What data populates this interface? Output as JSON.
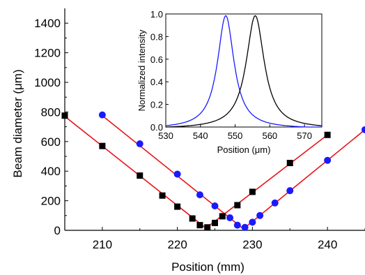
{
  "chart_data": [
    {
      "type": "scatter",
      "xlabel": "Position (mm)",
      "ylabel": "Beam diameter (μm)",
      "xlim": [
        205,
        245
      ],
      "ylim": [
        0,
        1500
      ],
      "xticks": [
        "210",
        "220",
        "230",
        "240"
      ],
      "yticks": [
        "0",
        "200",
        "400",
        "600",
        "800",
        "1000",
        "1200",
        "1400"
      ],
      "series": [
        {
          "marker": "square",
          "color": "#000000",
          "points": [
            [
              205,
              775
            ],
            [
              210,
              570
            ],
            [
              215,
              370
            ],
            [
              218,
              235
            ],
            [
              220,
              160
            ],
            [
              222,
              80
            ],
            [
              223,
              35
            ],
            [
              224,
              20
            ],
            [
              225,
              50
            ],
            [
              226,
              95
            ],
            [
              228,
              170
            ],
            [
              230,
              260
            ],
            [
              235,
              455
            ],
            [
              240,
              645
            ]
          ],
          "fit": [
            [
              205,
              770
            ],
            [
              223.8,
              15
            ],
            [
              240,
              645
            ]
          ]
        },
        {
          "marker": "circle",
          "color": "#1a1aff",
          "points": [
            [
              210,
              780
            ],
            [
              215,
              585
            ],
            [
              220,
              380
            ],
            [
              223,
              240
            ],
            [
              225,
              165
            ],
            [
              227,
              85
            ],
            [
              228,
              35
            ],
            [
              229,
              20
            ],
            [
              230,
              55
            ],
            [
              231,
              100
            ],
            [
              233,
              185
            ],
            [
              235,
              268
            ],
            [
              240,
              473
            ],
            [
              245,
              680
            ]
          ],
          "fit": [
            [
              210,
              775
            ],
            [
              228.8,
              10
            ],
            [
              245,
              680
            ]
          ]
        }
      ],
      "fit_color": "#e8141b",
      "grid": false
    },
    {
      "type": "line",
      "xlabel": "Position (μm)",
      "ylabel": "Normalized intensity",
      "xlim": [
        530,
        575
      ],
      "ylim": [
        0,
        1.0
      ],
      "xticks": [
        "530",
        "540",
        "550",
        "560",
        "570"
      ],
      "yticks": [
        "0.0",
        "0.2",
        "0.4",
        "0.6",
        "0.8",
        "1.0"
      ],
      "series": [
        {
          "color": "#1a1aff",
          "peak": 547.3,
          "width": 3.3,
          "x": [
            530,
            535,
            538,
            540,
            542,
            544,
            545,
            546,
            547.3,
            548.5,
            550,
            552,
            554,
            556,
            558,
            560,
            565,
            575
          ],
          "y": [
            0.0,
            0.02,
            0.07,
            0.13,
            0.28,
            0.55,
            0.72,
            0.88,
            1.0,
            0.93,
            0.74,
            0.42,
            0.2,
            0.09,
            0.04,
            0.02,
            0.0,
            0.0
          ]
        },
        {
          "color": "#000000",
          "peak": 555.8,
          "width": 3.6,
          "x": [
            530,
            540,
            544,
            546,
            548,
            550,
            552,
            553,
            554,
            555.8,
            557,
            558,
            560,
            562,
            564,
            566,
            570,
            575
          ],
          "y": [
            0.0,
            0.0,
            0.02,
            0.04,
            0.09,
            0.2,
            0.42,
            0.62,
            0.8,
            1.0,
            0.95,
            0.86,
            0.6,
            0.32,
            0.15,
            0.07,
            0.02,
            0.0
          ]
        }
      ],
      "grid": false
    }
  ]
}
